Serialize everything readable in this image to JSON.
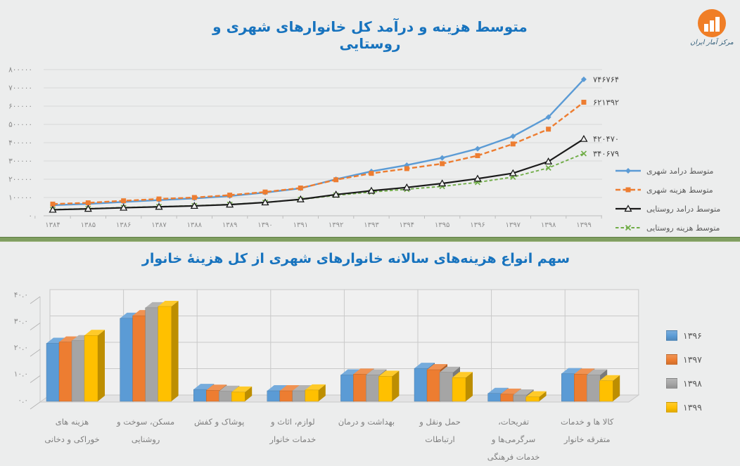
{
  "page": {
    "background": "#ECEDED",
    "title_color": "#1773BE",
    "separator_color": "#7F9E60"
  },
  "logo": {
    "text": "مرکز آمار ایران",
    "icon": "bar-chart-in-orange-circle",
    "circle_color": "#F07E26"
  },
  "chart_data": [
    {
      "type": "line",
      "title": "متوسط هزینه و درآمد کل خانوارهای شهری و روستایی",
      "grid": "horizontal",
      "legend_position": "right",
      "x_labels": [
        "۱۳۸۴",
        "۱۳۸۵",
        "۱۳۸۶",
        "۱۳۸۷",
        "۱۳۸۸",
        "۱۳۸۹",
        "۱۳۹۰",
        "۱۳۹۱",
        "۱۳۹۲",
        "۱۳۹۳",
        "۱۳۹۴",
        "۱۳۹۵",
        "۱۳۹۶",
        "۱۳۹۷",
        "۱۳۹۸",
        "۱۳۹۹"
      ],
      "x_values": [
        1384,
        1385,
        1386,
        1387,
        1388,
        1389,
        1390,
        1391,
        1392,
        1393,
        1394,
        1395,
        1396,
        1397,
        1398,
        1399
      ],
      "y_axis": {
        "min": 0,
        "max": 800000,
        "step": 100000,
        "labels": [
          "۰",
          "۱۰۰۰۰۰",
          "۲۰۰۰۰۰",
          "۳۰۰۰۰۰",
          "۴۰۰۰۰۰",
          "۵۰۰۰۰۰",
          "۶۰۰۰۰۰",
          "۷۰۰۰۰۰",
          "۸۰۰۰۰۰"
        ]
      },
      "series": [
        {
          "name": "متوسط درامد  شهری",
          "color": "#5B9BD5",
          "line": "solid",
          "marker": "diamond",
          "width": 2.4,
          "values": [
            58000,
            65000,
            76000,
            86000,
            95000,
            108000,
            127000,
            150000,
            200000,
            243000,
            277000,
            317000,
            367000,
            435000,
            540000,
            746764
          ],
          "end_label": "۷۴۶۷۶۴",
          "end_value": 746764
        },
        {
          "name": "متوسط هزینه شهری",
          "color": "#ED7D31",
          "line": "dashed",
          "dash_pattern": "7 3.5",
          "marker": "square",
          "width": 2.4,
          "values": [
            64000,
            71000,
            82000,
            92000,
            100000,
            113000,
            130000,
            152000,
            197000,
            232000,
            258000,
            285000,
            329000,
            393000,
            474000,
            621392
          ],
          "end_label": "۶۲۱۳۹۲",
          "end_value": 621392
        },
        {
          "name": "متوسط درامد روستایی",
          "color": "#1A1A1A",
          "line": "solid",
          "marker": "triangle",
          "width": 2.2,
          "values": [
            33000,
            38000,
            44000,
            49000,
            54000,
            61000,
            73000,
            90000,
            116000,
            137000,
            155000,
            177000,
            203000,
            233000,
            297000,
            420470
          ],
          "end_label": "۴۲۰۴۷۰",
          "end_value": 420470
        },
        {
          "name": "متوسط هزینه روستایی",
          "color": "#70AD47",
          "line": "dashed",
          "dash_pattern": "4.5 3",
          "marker": "x",
          "width": 1.9,
          "values": [
            34000,
            39000,
            45000,
            50000,
            55000,
            62000,
            73000,
            89000,
            112000,
            130000,
            145000,
            161000,
            183000,
            212000,
            262000,
            340679
          ],
          "end_label": "۳۴۰۶۷۹",
          "end_value": 340679
        }
      ]
    },
    {
      "type": "bar",
      "style": "3d-clustered",
      "title": "سهم انواع هزینه‌های سالانه خانوارهای شهری از کل هزینۀ خانوار",
      "grid": "horizontal",
      "legend_position": "right",
      "categories": [
        "هزینه های خوراکی و دخانی",
        "مسکن، سوخت و روشنایی",
        "پوشاک و کفش",
        "لوازم، اثاث و خدمات خانوار",
        "بهداشت و درمان",
        "حمل ونقل و ارتباطات",
        "تفریحات، سرگرمی‌ها و خدمات فرهنگی",
        "کالا ها و خدمات متفرقه خانوار"
      ],
      "category_lines": [
        [
          "هزینه های",
          "خوراکی و دخانی"
        ],
        [
          "مسکن، سوخت و",
          "روشنایی"
        ],
        [
          "پوشاک و کفش"
        ],
        [
          "لوازم، اثاث و",
          "خدمات خانوار"
        ],
        [
          "بهداشت و درمان"
        ],
        [
          "حمل ونقل و",
          "ارتباطات"
        ],
        [
          "تفریحات،",
          "سرگرمی‌ها و",
          "خدمات فرهنگی"
        ],
        [
          "کالا ها و خدمات",
          "متفرقه خانوار"
        ]
      ],
      "y_axis": {
        "min": 0,
        "max": 40,
        "step": 10,
        "labels": [
          "۰.۰",
          "۱۰.۰",
          "۲۰.۰",
          "۳۰.۰",
          "۴۰.۰"
        ]
      },
      "series": [
        {
          "name": "۱۳۹۶",
          "color": "#5B9BD5",
          "values": [
            22.0,
            31.5,
            4.5,
            4.0,
            10.0,
            12.5,
            3.0,
            10.5
          ]
        },
        {
          "name": "۱۳۹۷",
          "color": "#ED7D31",
          "values": [
            22.5,
            32.5,
            4.2,
            4.0,
            10.3,
            12.0,
            2.7,
            10.3
          ]
        },
        {
          "name": "۱۳۹۸",
          "color": "#A5A5A5",
          "values": [
            23.0,
            35.5,
            3.8,
            4.0,
            10.0,
            11.0,
            2.4,
            10.0
          ]
        },
        {
          "name": "۱۳۹۹",
          "color": "#FFC000",
          "values": [
            25.0,
            36.0,
            3.5,
            4.3,
            9.5,
            9.0,
            1.7,
            7.8
          ]
        }
      ]
    }
  ]
}
